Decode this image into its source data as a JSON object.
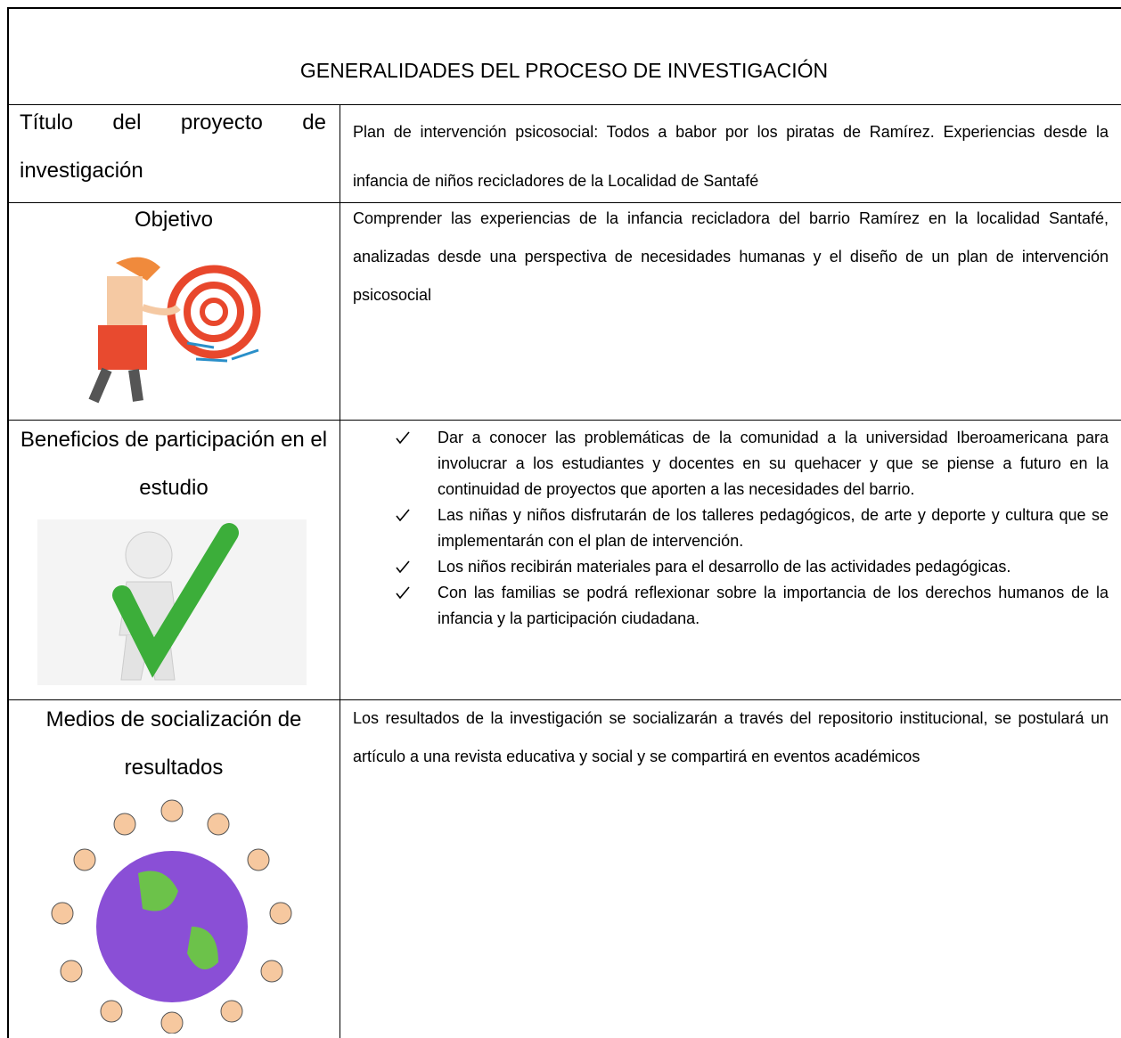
{
  "header": {
    "title": "GENERALIDADES DEL PROCESO DE INVESTIGACIÓN"
  },
  "table": {
    "rows": [
      {
        "label": "Título del proyecto de investigación",
        "content": "Plan de intervención psicosocial: Todos a babor por los piratas de Ramírez. Experiencias desde la infancia de niños recicladores de la Localidad de Santafé"
      },
      {
        "label": "Objetivo",
        "content": "Comprender las experiencias de la infancia recicladora del barrio Ramírez en la localidad Santafé, analizadas desde una perspectiva de necesidades humanas y el diseño de un plan de intervención psicosocial"
      },
      {
        "label": "Beneficios de participación en el estudio",
        "items": [
          "Dar a conocer las problemáticas de la comunidad a la universidad Iberoamericana para involucrar a los estudiantes y docentes en su quehacer y que se piense a futuro en la continuidad de proyectos que aporten a las necesidades del barrio.",
          "Las niñas y niños disfrutarán de los talleres pedagógicos, de arte y deporte y cultura que se implementarán con el plan de intervención.",
          "Los niños recibirán materiales para el desarrollo de las actividades pedagógicas.",
          "Con las familias se podrá reflexionar sobre la importancia de los derechos humanos de la infancia y la participación ciudadana."
        ]
      },
      {
        "label": "Medios de socialización de resultados",
        "content": "Los resultados de la investigación se socializarán a través del repositorio institucional, se postulará un artículo a una revista educativa y social y se compartirá en eventos académicos"
      }
    ]
  }
}
